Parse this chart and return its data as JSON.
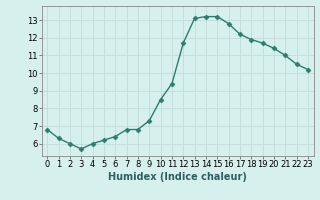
{
  "x": [
    0,
    1,
    2,
    3,
    4,
    5,
    6,
    7,
    8,
    9,
    10,
    11,
    12,
    13,
    14,
    15,
    16,
    17,
    18,
    19,
    20,
    21,
    22,
    23
  ],
  "y": [
    6.8,
    6.3,
    6.0,
    5.7,
    6.0,
    6.2,
    6.4,
    6.8,
    6.8,
    7.3,
    8.5,
    9.4,
    11.7,
    13.1,
    13.2,
    13.2,
    12.8,
    12.2,
    11.9,
    11.7,
    11.4,
    11.0,
    10.5,
    10.2
  ],
  "line_color": "#2d7d6e",
  "marker": "D",
  "markersize": 2.5,
  "linewidth": 1.0,
  "bg_color": "#d6f0ee",
  "grid_color": "#c4dbd8",
  "xlabel": "Humidex (Indice chaleur)",
  "xlabel_fontsize": 7,
  "tick_fontsize": 6,
  "xlim": [
    -0.5,
    23.5
  ],
  "ylim": [
    5.3,
    13.8
  ],
  "yticks": [
    6,
    7,
    8,
    9,
    10,
    11,
    12,
    13
  ],
  "xticks": [
    0,
    1,
    2,
    3,
    4,
    5,
    6,
    7,
    8,
    9,
    10,
    11,
    12,
    13,
    14,
    15,
    16,
    17,
    18,
    19,
    20,
    21,
    22,
    23
  ]
}
